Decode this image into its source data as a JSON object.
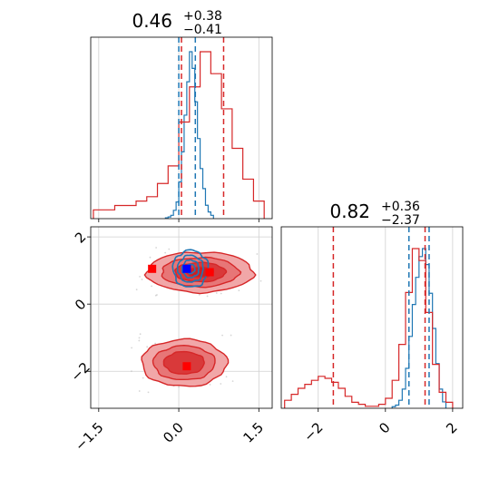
{
  "chart_data": [
    {
      "panel": "marginal-param-1",
      "type": "histogram",
      "title": {
        "value": "0.46",
        "plus": "+0.38",
        "minus": "−0.41"
      },
      "xlim": [
        -1.65,
        1.75
      ],
      "series": [
        {
          "name": "",
          "color": "#1f77b4",
          "median": 0.2,
          "quantiles": [
            0.0,
            0.31
          ],
          "bin_edges": [
            -0.25,
            -0.2,
            -0.15,
            -0.1,
            -0.05,
            0.0,
            0.05,
            0.1,
            0.15,
            0.2,
            0.25,
            0.3,
            0.35,
            0.4,
            0.45,
            0.5,
            0.55,
            0.6,
            0.65
          ],
          "counts": [
            0.5,
            1,
            2,
            5,
            10,
            22,
            40,
            62,
            82,
            100,
            90,
            70,
            48,
            30,
            18,
            8,
            4,
            2
          ]
        },
        {
          "name": "",
          "color": "#d62728",
          "median": 0.46,
          "quantiles": [
            0.05,
            0.84
          ],
          "bin_edges": [
            -1.6,
            -1.4,
            -1.2,
            -1.0,
            -0.8,
            -0.6,
            -0.4,
            -0.2,
            0.0,
            0.2,
            0.4,
            0.6,
            0.8,
            1.0,
            1.2,
            1.4,
            1.6
          ],
          "counts": [
            2,
            2,
            3,
            3,
            4,
            5,
            8,
            12,
            22,
            30,
            38,
            33,
            25,
            16,
            9,
            4
          ]
        }
      ]
    },
    {
      "panel": "joint-2d",
      "type": "contour",
      "xlim": [
        -1.65,
        1.75
      ],
      "ylim": [
        -3.1,
        2.3
      ],
      "xticks": [
        "−1.5",
        "0.0",
        "1.5"
      ],
      "yticks": [
        "2",
        "0",
        "−2"
      ],
      "red_modes": [
        {
          "x": 0.4,
          "y": 0.95,
          "sx": 0.5,
          "sy": 0.3
        },
        {
          "x": 0.1,
          "y": -1.75,
          "sx": 0.4,
          "sy": 0.35
        }
      ],
      "blue_mode": {
        "x": 0.22,
        "y": 1.05,
        "sx": 0.15,
        "sy": 0.25
      },
      "markers": [
        {
          "x": -0.5,
          "y": 1.05,
          "color": "#ff0000"
        },
        {
          "x": 0.58,
          "y": 0.95,
          "color": "#ff0000"
        },
        {
          "x": 0.15,
          "y": -1.85,
          "color": "#ff0000"
        },
        {
          "x": 0.15,
          "y": 1.05,
          "color": "#0000ff"
        }
      ]
    },
    {
      "panel": "marginal-param-2",
      "type": "histogram",
      "title": {
        "value": "0.82",
        "plus": "+0.36",
        "minus": "−2.37"
      },
      "xlim": [
        -3.1,
        2.3
      ],
      "xticks": [
        "−2",
        "0",
        "2"
      ],
      "series": [
        {
          "name": "",
          "color": "#1f77b4",
          "median": 1.05,
          "quantiles": [
            0.7,
            1.3
          ],
          "bin_edges": [
            0.2,
            0.3,
            0.4,
            0.5,
            0.6,
            0.7,
            0.8,
            0.9,
            1.0,
            1.1,
            1.2,
            1.3,
            1.4,
            1.5,
            1.6,
            1.7,
            1.8
          ],
          "counts": [
            1,
            2,
            5,
            12,
            25,
            45,
            65,
            82,
            95,
            100,
            90,
            72,
            50,
            28,
            12,
            4
          ]
        },
        {
          "name": "",
          "color": "#d62728",
          "median": 0.82,
          "quantiles": [
            -1.55,
            1.18
          ],
          "bin_edges": [
            -3.0,
            -2.8,
            -2.6,
            -2.4,
            -2.2,
            -2.0,
            -1.8,
            -1.6,
            -1.4,
            -1.2,
            -1.0,
            -0.8,
            -0.6,
            -0.4,
            -0.2,
            0.0,
            0.2,
            0.4,
            0.6,
            0.8,
            1.0,
            1.2,
            1.4,
            1.6,
            1.8,
            2.0
          ],
          "counts": [
            4,
            7,
            10,
            12,
            14,
            16,
            15,
            13,
            10,
            6,
            3,
            2,
            1,
            1,
            2,
            5,
            14,
            32,
            58,
            80,
            74,
            48,
            22,
            8,
            3
          ]
        }
      ]
    }
  ]
}
